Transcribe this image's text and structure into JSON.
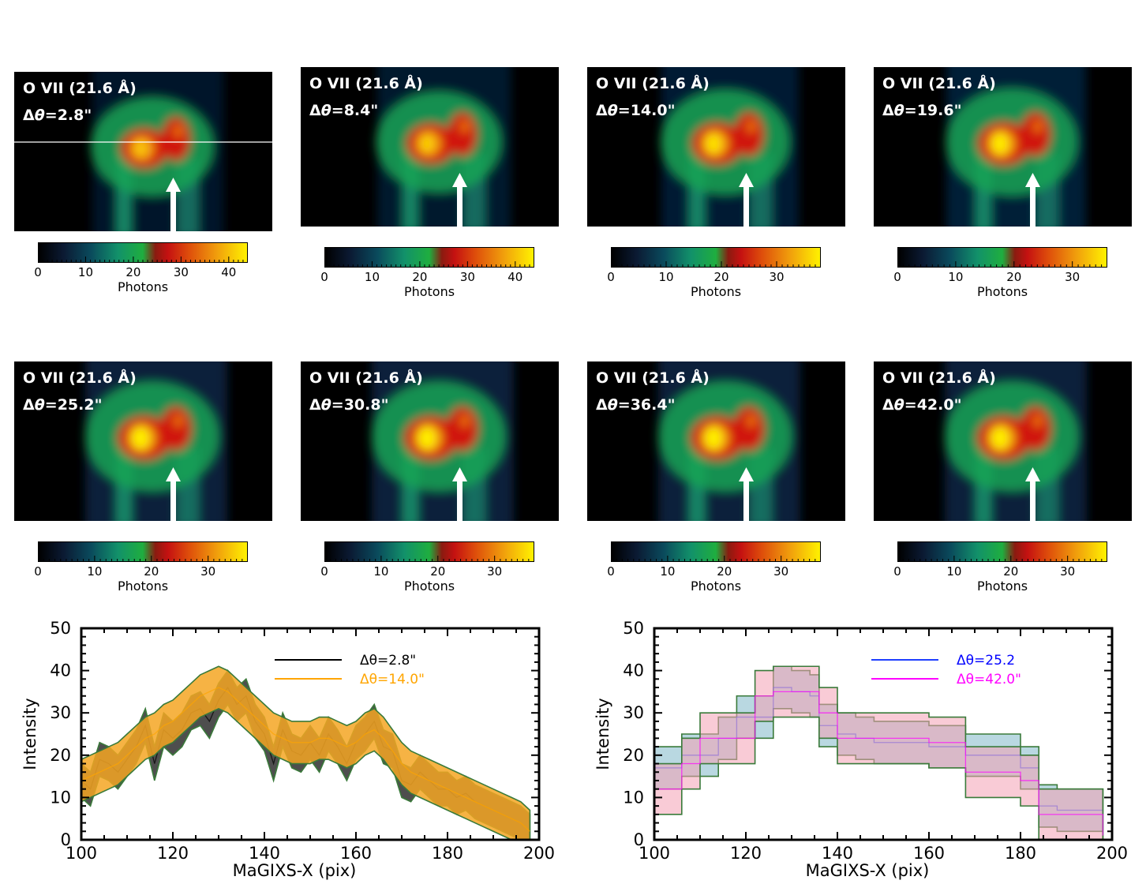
{
  "panels": [
    {
      "title": "O VII (21.6 Å)",
      "dtheta": "2.8\"",
      "cbar_ticks": [
        "0",
        "10",
        "20",
        "30",
        "40"
      ],
      "cbar_max": 44,
      "cbar_label": "Photons",
      "bright": 0.55,
      "spread": 0.55,
      "hline": true
    },
    {
      "title": "O VII (21.6 Å)",
      "dtheta": "8.4\"",
      "cbar_ticks": [
        "0",
        "10",
        "20",
        "30",
        "40"
      ],
      "cbar_max": 44,
      "cbar_label": "Photons",
      "bright": 0.65,
      "spread": 0.65,
      "hline": false
    },
    {
      "title": "O VII (21.6 Å)",
      "dtheta": "14.0\"",
      "cbar_ticks": [
        "0",
        "10",
        "20",
        "30"
      ],
      "cbar_max": 38,
      "cbar_label": "Photons",
      "bright": 0.85,
      "spread": 0.8,
      "hline": false
    },
    {
      "title": "O VII (21.6 Å)",
      "dtheta": "19.6\"",
      "cbar_ticks": [
        "0",
        "10",
        "20",
        "30"
      ],
      "cbar_max": 36,
      "cbar_label": "Photons",
      "bright": 0.95,
      "spread": 0.9,
      "hline": false
    },
    {
      "title": "O VII (21.6 Å)",
      "dtheta": "25.2\"",
      "cbar_ticks": [
        "0",
        "10",
        "20",
        "30"
      ],
      "cbar_max": 37,
      "cbar_label": "Photons",
      "bright": 1.0,
      "spread": 1.0,
      "hline": false
    },
    {
      "title": "O VII (21.6 Å)",
      "dtheta": "30.8\"",
      "cbar_ticks": [
        "0",
        "10",
        "20",
        "30"
      ],
      "cbar_max": 37,
      "cbar_label": "Photons",
      "bright": 1.0,
      "spread": 1.0,
      "hline": false
    },
    {
      "title": "O VII (21.6 Å)",
      "dtheta": "36.4\"",
      "cbar_ticks": [
        "0",
        "10",
        "20",
        "30"
      ],
      "cbar_max": 37,
      "cbar_label": "Photons",
      "bright": 1.0,
      "spread": 1.0,
      "hline": false
    },
    {
      "title": "O VII (21.6 Å)",
      "dtheta": "42.0\"",
      "cbar_ticks": [
        "0",
        "10",
        "20",
        "30"
      ],
      "cbar_max": 37,
      "cbar_label": "Photons",
      "bright": 1.0,
      "spread": 1.0,
      "hline": false
    }
  ],
  "chart_data": [
    {
      "type": "line",
      "xlabel": "MaGIXS-X (pix)",
      "ylabel": "Intensity",
      "xlim": [
        100,
        200
      ],
      "ylim": [
        0,
        50
      ],
      "xticks": [
        "100",
        "120",
        "140",
        "160",
        "180",
        "200"
      ],
      "yticks": [
        "0",
        "10",
        "20",
        "30",
        "40",
        "50"
      ],
      "legend_position": "top-right",
      "series": [
        {
          "name": "Δθ=2.8\"",
          "color": "#000000",
          "fill": "#2f2f2f",
          "legend_text_color": "#000000",
          "x": [
            100,
            102,
            104,
            106,
            108,
            110,
            112,
            114,
            116,
            118,
            120,
            122,
            124,
            126,
            128,
            130,
            132,
            134,
            136,
            138,
            140,
            142,
            144,
            146,
            148,
            150,
            152,
            154,
            156,
            158,
            160,
            162,
            164,
            166,
            168,
            170,
            172,
            174,
            176,
            178,
            180,
            182,
            184,
            186,
            188,
            190,
            192,
            194,
            196,
            198
          ],
          "y": [
            14,
            12,
            19,
            18,
            16,
            19,
            22,
            27,
            18,
            26,
            24,
            26,
            30,
            31,
            28,
            33,
            36,
            32,
            34,
            28,
            25,
            18,
            26,
            21,
            20,
            23,
            20,
            25,
            22,
            18,
            23,
            25,
            28,
            22,
            21,
            14,
            13,
            16,
            14,
            12,
            12,
            10,
            11,
            9,
            8,
            7,
            6,
            5,
            4,
            2
          ],
          "err": 4
        },
        {
          "name": "Δθ=14.0\"",
          "color": "#ffa500",
          "fill": "#f5a623",
          "legend_text_color": "#ffa500",
          "x": [
            100,
            102,
            104,
            106,
            108,
            110,
            112,
            114,
            116,
            118,
            120,
            122,
            124,
            126,
            128,
            130,
            132,
            134,
            136,
            138,
            140,
            142,
            144,
            146,
            148,
            150,
            152,
            154,
            156,
            158,
            160,
            162,
            164,
            166,
            168,
            170,
            172,
            174,
            176,
            178,
            180,
            182,
            184,
            186,
            188,
            190,
            192,
            194,
            196,
            198
          ],
          "y": [
            14,
            15,
            16,
            17,
            18,
            20,
            22,
            24,
            25,
            27,
            28,
            30,
            32,
            34,
            35,
            36,
            35,
            33,
            31,
            29,
            27,
            25,
            24,
            23,
            23,
            23,
            24,
            24,
            23,
            22,
            23,
            25,
            26,
            24,
            21,
            18,
            16,
            15,
            14,
            13,
            12,
            11,
            10,
            9,
            8,
            7,
            6,
            5,
            4,
            2
          ],
          "err": 5
        }
      ]
    },
    {
      "type": "line",
      "xlabel": "MaGIXS-X (pix)",
      "ylabel": "Intensity",
      "xlim": [
        100,
        200
      ],
      "ylim": [
        0,
        50
      ],
      "xticks": [
        "100",
        "120",
        "140",
        "160",
        "180",
        "200"
      ],
      "yticks": [
        "0",
        "10",
        "20",
        "30",
        "40",
        "50"
      ],
      "legend_position": "top-right",
      "series": [
        {
          "name": "Δθ=25.2",
          "color": "#1f3fff",
          "fill": "#7fb8c9",
          "legend_text_color": "#0000ff",
          "x": [
            100,
            103,
            106,
            110,
            114,
            118,
            122,
            126,
            130,
            134,
            136,
            140,
            144,
            148,
            152,
            156,
            160,
            164,
            168,
            172,
            176,
            180,
            184,
            188,
            192,
            196,
            198
          ],
          "y": [
            17,
            17,
            20,
            20,
            24,
            29,
            29,
            36,
            35,
            34,
            27,
            25,
            24,
            23,
            23,
            23,
            22,
            22,
            20,
            20,
            20,
            17,
            8,
            7,
            7,
            7,
            1
          ],
          "err": 5
        },
        {
          "name": "Δθ=42.0\"",
          "color": "#ff00ff",
          "fill": "#f4a0b4",
          "legend_text_color": "#ff00ff",
          "x": [
            100,
            103,
            106,
            110,
            114,
            118,
            122,
            126,
            130,
            134,
            136,
            140,
            144,
            148,
            152,
            156,
            160,
            164,
            168,
            172,
            176,
            180,
            184,
            188,
            192,
            196,
            198
          ],
          "y": [
            12,
            12,
            18,
            24,
            24,
            24,
            34,
            35,
            35,
            35,
            30,
            24,
            24,
            24,
            24,
            24,
            23,
            23,
            16,
            16,
            16,
            14,
            6,
            6,
            6,
            6,
            1
          ],
          "err": 6
        }
      ]
    }
  ]
}
